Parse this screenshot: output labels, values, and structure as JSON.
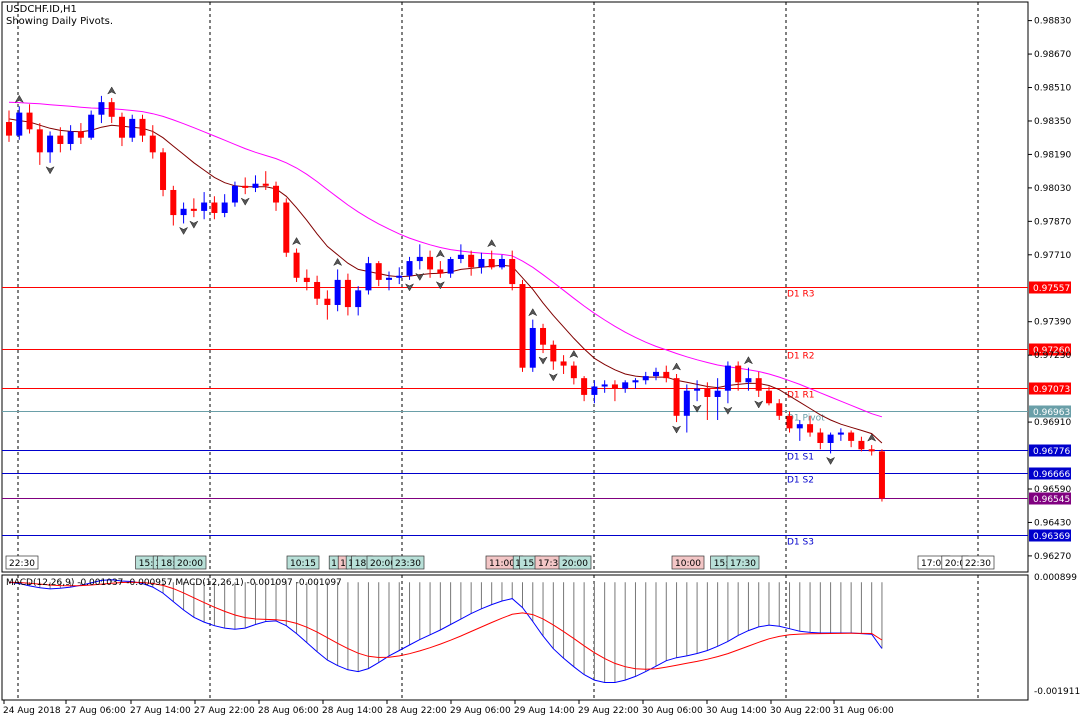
{
  "header": {
    "symbol": "USDCHF.ID,H1",
    "note": "Showing Daily Pivots."
  },
  "macd_label": "MACD(12,26,9) -0.001037 -0.000957 MACD(12,26,1) -0.001097 -0.001097",
  "colors": {
    "bull": "#0000ff",
    "bear": "#ff0000",
    "ma_fast": "#800000",
    "ma_slow": "#ff00ff",
    "resistance": "#ff0000",
    "pivot": "#6a9fa8",
    "support": "#0000cc",
    "current": "#800080"
  },
  "chart_data": {
    "type": "candlestick",
    "ylim": [
      0.96193,
      0.98919
    ],
    "y_ticks": [
      "0.98830",
      "0.98670",
      "0.98510",
      "0.98350",
      "0.98190",
      "0.98030",
      "0.97870",
      "0.97710",
      "0.97390",
      "0.97230",
      "0.96910",
      "0.96590",
      "0.96430",
      "0.96270"
    ],
    "x_ticks": [
      "24 Aug 2018",
      "27 Aug 06:00",
      "27 Aug 14:00",
      "27 Aug 22:00",
      "28 Aug 06:00",
      "28 Aug 14:00",
      "28 Aug 22:00",
      "29 Aug 06:00",
      "29 Aug 14:00",
      "29 Aug 22:00",
      "30 Aug 06:00",
      "30 Aug 14:00",
      "30 Aug 22:00",
      "31 Aug 06:00"
    ],
    "pivot_levels": [
      {
        "label": "D1 R3",
        "value": 0.97557,
        "tag": "0.97557",
        "kind": "resistance"
      },
      {
        "label": "D1 R2",
        "value": 0.9726,
        "tag": "0.97260",
        "kind": "resistance"
      },
      {
        "label": "D1 R1",
        "value": 0.97073,
        "tag": "0.97073",
        "kind": "resistance"
      },
      {
        "label": "D1 Pivot",
        "value": 0.96963,
        "tag": "0.96963",
        "kind": "pivot"
      },
      {
        "label": "D1 S1",
        "value": 0.96776,
        "tag": "0.96776",
        "kind": "support"
      },
      {
        "label": "D1 S2",
        "value": 0.96666,
        "tag": "0.96666",
        "kind": "support"
      },
      {
        "label": "",
        "value": 0.96545,
        "tag": "0.96545",
        "kind": "current"
      },
      {
        "label": "D1 S3",
        "value": 0.96369,
        "tag": "0.96369",
        "kind": "support"
      }
    ],
    "candles": [
      [
        0.98345,
        0.984,
        0.9825,
        0.9828
      ],
      [
        0.9828,
        0.9842,
        0.9826,
        0.9839
      ],
      [
        0.9839,
        0.9843,
        0.9829,
        0.9831
      ],
      [
        0.9831,
        0.9834,
        0.9814,
        0.982
      ],
      [
        0.982,
        0.983,
        0.9815,
        0.9828
      ],
      [
        0.9828,
        0.9832,
        0.982,
        0.9824
      ],
      [
        0.9824,
        0.9833,
        0.9821,
        0.983
      ],
      [
        0.983,
        0.9834,
        0.9824,
        0.9827
      ],
      [
        0.9827,
        0.984,
        0.9826,
        0.9838
      ],
      [
        0.9838,
        0.9847,
        0.9834,
        0.9844
      ],
      [
        0.9844,
        0.9846,
        0.9834,
        0.9837
      ],
      [
        0.9837,
        0.9839,
        0.9823,
        0.9827
      ],
      [
        0.9827,
        0.9838,
        0.9825,
        0.9836
      ],
      [
        0.9836,
        0.9838,
        0.9825,
        0.9828
      ],
      [
        0.9828,
        0.9833,
        0.9817,
        0.982
      ],
      [
        0.982,
        0.9822,
        0.9799,
        0.9802
      ],
      [
        0.9802,
        0.9804,
        0.9785,
        0.979
      ],
      [
        0.979,
        0.9796,
        0.9786,
        0.9793
      ],
      [
        0.9793,
        0.9798,
        0.9789,
        0.9792
      ],
      [
        0.9792,
        0.9801,
        0.9788,
        0.9796
      ],
      [
        0.9796,
        0.9799,
        0.9788,
        0.9791
      ],
      [
        0.9791,
        0.98,
        0.9789,
        0.9796
      ],
      [
        0.9796,
        0.9806,
        0.9794,
        0.9804
      ],
      [
        0.9804,
        0.9808,
        0.98,
        0.9803
      ],
      [
        0.9803,
        0.9809,
        0.9801,
        0.9805
      ],
      [
        0.9805,
        0.9811,
        0.9802,
        0.9804
      ],
      [
        0.9804,
        0.9806,
        0.9792,
        0.9796
      ],
      [
        0.9796,
        0.9798,
        0.977,
        0.9772
      ],
      [
        0.9772,
        0.9774,
        0.9758,
        0.976
      ],
      [
        0.976,
        0.9764,
        0.9754,
        0.9758
      ],
      [
        0.9758,
        0.9761,
        0.9747,
        0.975
      ],
      [
        0.975,
        0.9754,
        0.974,
        0.9747
      ],
      [
        0.9747,
        0.9764,
        0.9744,
        0.9759
      ],
      [
        0.9759,
        0.9762,
        0.9742,
        0.9746
      ],
      [
        0.9746,
        0.9756,
        0.9742,
        0.9754
      ],
      [
        0.9754,
        0.977,
        0.9752,
        0.9767
      ],
      [
        0.9767,
        0.9768,
        0.9756,
        0.9759
      ],
      [
        0.9759,
        0.9763,
        0.9754,
        0.976
      ],
      [
        0.976,
        0.9765,
        0.9757,
        0.9761
      ],
      [
        0.9761,
        0.977,
        0.9759,
        0.9768
      ],
      [
        0.9768,
        0.9776,
        0.9764,
        0.977
      ],
      [
        0.977,
        0.9773,
        0.976,
        0.9764
      ],
      [
        0.9764,
        0.9768,
        0.976,
        0.9762
      ],
      [
        0.9762,
        0.977,
        0.976,
        0.9769
      ],
      [
        0.9769,
        0.9776,
        0.9767,
        0.9771
      ],
      [
        0.9771,
        0.9773,
        0.9761,
        0.9765
      ],
      [
        0.9765,
        0.9772,
        0.9762,
        0.9769
      ],
      [
        0.9769,
        0.9773,
        0.9764,
        0.9765
      ],
      [
        0.9765,
        0.9771,
        0.9764,
        0.9769
      ],
      [
        0.9769,
        0.9773,
        0.9754,
        0.9757
      ],
      [
        0.9757,
        0.9759,
        0.9715,
        0.9717
      ],
      [
        0.9717,
        0.974,
        0.9715,
        0.9736
      ],
      [
        0.9736,
        0.9738,
        0.9724,
        0.9728
      ],
      [
        0.9728,
        0.973,
        0.9716,
        0.972
      ],
      [
        0.972,
        0.9723,
        0.9714,
        0.9718
      ],
      [
        0.9718,
        0.972,
        0.9709,
        0.9712
      ],
      [
        0.9712,
        0.9713,
        0.9701,
        0.9704
      ],
      [
        0.9704,
        0.9711,
        0.97,
        0.9708
      ],
      [
        0.9708,
        0.9711,
        0.9705,
        0.9709
      ],
      [
        0.9709,
        0.9711,
        0.9701,
        0.9707
      ],
      [
        0.9707,
        0.9711,
        0.9705,
        0.971
      ],
      [
        0.971,
        0.9712,
        0.9707,
        0.9711
      ],
      [
        0.9711,
        0.9715,
        0.9709,
        0.9713
      ],
      [
        0.9713,
        0.9717,
        0.9711,
        0.9715
      ],
      [
        0.9715,
        0.9718,
        0.971,
        0.9712
      ],
      [
        0.9712,
        0.9714,
        0.9691,
        0.9694
      ],
      [
        0.9694,
        0.9709,
        0.9686,
        0.9706
      ],
      [
        0.9706,
        0.9711,
        0.9701,
        0.9707
      ],
      [
        0.9707,
        0.971,
        0.9692,
        0.9703
      ],
      [
        0.9703,
        0.9712,
        0.9692,
        0.9706
      ],
      [
        0.9706,
        0.972,
        0.97,
        0.9718
      ],
      [
        0.9718,
        0.972,
        0.9706,
        0.971
      ],
      [
        0.971,
        0.9717,
        0.9706,
        0.9712
      ],
      [
        0.9712,
        0.9715,
        0.9703,
        0.9706
      ],
      [
        0.9706,
        0.9708,
        0.9699,
        0.97
      ],
      [
        0.97,
        0.9702,
        0.9692,
        0.9694
      ],
      [
        0.9694,
        0.9696,
        0.9686,
        0.9688
      ],
      [
        0.9688,
        0.9692,
        0.9682,
        0.969
      ],
      [
        0.969,
        0.9694,
        0.9684,
        0.9686
      ],
      [
        0.9686,
        0.9688,
        0.9678,
        0.9681
      ],
      [
        0.9681,
        0.9686,
        0.9676,
        0.9685
      ],
      [
        0.9685,
        0.9688,
        0.9682,
        0.9686
      ],
      [
        0.9686,
        0.9687,
        0.9679,
        0.9682
      ],
      [
        0.9682,
        0.9684,
        0.9677,
        0.9678
      ],
      [
        0.9678,
        0.968,
        0.9675,
        0.9677
      ],
      [
        0.9677,
        0.9678,
        0.9653,
        0.96545
      ]
    ],
    "ma_fast": [
      0.9836,
      0.98352,
      0.98345,
      0.9833,
      0.98315,
      0.98305,
      0.983,
      0.98298,
      0.98305,
      0.9832,
      0.9833,
      0.98325,
      0.9832,
      0.98315,
      0.983,
      0.9827,
      0.9823,
      0.9819,
      0.9815,
      0.98115,
      0.9808,
      0.98055,
      0.9804,
      0.98035,
      0.98035,
      0.98035,
      0.98025,
      0.9799,
      0.97935,
      0.97875,
      0.9781,
      0.9775,
      0.9771,
      0.9767,
      0.9764,
      0.9763,
      0.9762,
      0.9761,
      0.97605,
      0.97608,
      0.97615,
      0.9762,
      0.97622,
      0.97628,
      0.9764,
      0.97645,
      0.9765,
      0.97655,
      0.9766,
      0.97655,
      0.976,
      0.97545,
      0.9748,
      0.9742,
      0.97365,
      0.9731,
      0.9726,
      0.97215,
      0.97185,
      0.9716,
      0.9714,
      0.9713,
      0.97125,
      0.97125,
      0.97125,
      0.9711,
      0.971,
      0.9709,
      0.9708,
      0.97075,
      0.97085,
      0.9709,
      0.97095,
      0.97095,
      0.97085,
      0.97065,
      0.97035,
      0.97005,
      0.96975,
      0.96945,
      0.9692,
      0.969,
      0.96885,
      0.9687,
      0.96855,
      0.9681
    ],
    "ma_slow": [
      0.9844,
      0.98438,
      0.98435,
      0.98432,
      0.98428,
      0.98424,
      0.9842,
      0.98416,
      0.98412,
      0.9841,
      0.98408,
      0.98405,
      0.984,
      0.98395,
      0.98385,
      0.98372,
      0.98355,
      0.98337,
      0.98318,
      0.98298,
      0.98278,
      0.98258,
      0.98238,
      0.98218,
      0.982,
      0.98185,
      0.9817,
      0.9815,
      0.98125,
      0.98095,
      0.9806,
      0.98022,
      0.97985,
      0.97948,
      0.97915,
      0.97885,
      0.97858,
      0.97833,
      0.9781,
      0.9779,
      0.97773,
      0.97758,
      0.97745,
      0.97735,
      0.97728,
      0.97722,
      0.97718,
      0.97715,
      0.97712,
      0.97705,
      0.9768,
      0.9765,
      0.97615,
      0.97578,
      0.9754,
      0.97502,
      0.97465,
      0.9743,
      0.97398,
      0.97368,
      0.9734,
      0.97315,
      0.97292,
      0.97272,
      0.97255,
      0.97238,
      0.97222,
      0.97208,
      0.97195,
      0.97183,
      0.97175,
      0.97168,
      0.9716,
      0.97152,
      0.9714,
      0.97125,
      0.97108,
      0.9709,
      0.9707,
      0.9705,
      0.9703,
      0.9701,
      0.9699,
      0.9697,
      0.9695,
      0.96935
    ],
    "fractals_up": [
      1,
      10,
      28,
      32,
      42,
      47,
      51,
      55,
      65,
      72,
      84
    ],
    "fractals_down": [
      4,
      17,
      18,
      23,
      39,
      40,
      42,
      52,
      53,
      65,
      67,
      70,
      73,
      80
    ],
    "time_tags": [
      {
        "text": "22:30",
        "x": 22,
        "cls": "dark"
      },
      {
        "text": "15:",
        "x": 146,
        "cls": "teal"
      },
      {
        "text": "1",
        "x": 158,
        "cls": "teal"
      },
      {
        "text": "18:",
        "x": 168,
        "cls": "teal"
      },
      {
        "text": "20:00",
        "x": 190,
        "cls": "teal"
      },
      {
        "text": "10:15",
        "x": 303,
        "cls": "teal"
      },
      {
        "text": "1",
        "x": 334,
        "cls": "teal"
      },
      {
        "text": "1",
        "x": 343,
        "cls": "pink"
      },
      {
        "text": "1",
        "x": 351,
        "cls": "teal"
      },
      {
        "text": "18:",
        "x": 362,
        "cls": "teal"
      },
      {
        "text": "20:00",
        "x": 383,
        "cls": "teal"
      },
      {
        "text": "23:30",
        "x": 408,
        "cls": "teal"
      },
      {
        "text": "11:00",
        "x": 502,
        "cls": "pink"
      },
      {
        "text": "1",
        "x": 518,
        "cls": "teal"
      },
      {
        "text": "15:",
        "x": 530,
        "cls": "teal"
      },
      {
        "text": "17:30",
        "x": 551,
        "cls": "pink"
      },
      {
        "text": "20:00",
        "x": 575,
        "cls": "teal"
      },
      {
        "text": "10:00",
        "x": 688,
        "cls": "pink"
      },
      {
        "text": "15:",
        "x": 721,
        "cls": "teal"
      },
      {
        "text": "17:30",
        "x": 743,
        "cls": "teal"
      },
      {
        "text": "17:00",
        "x": 934,
        "cls": "white"
      },
      {
        "text": "20:0",
        "x": 955,
        "cls": "white"
      },
      {
        "text": "22:30",
        "x": 978,
        "cls": "white"
      }
    ],
    "macd": {
      "ylim": [
        -0.00195,
        0.00012
      ],
      "top_tick": "0.000899",
      "bottom_tick": "-0.001911",
      "macd_hist": [
        0.0,
        -2e-05,
        -6e-05,
        -9e-05,
        -0.00011,
        -0.0001,
        -8e-05,
        -5e-05,
        -1e-05,
        3e-05,
        4e-05,
        2e-05,
        1e-05,
        -2e-05,
        -8e-05,
        -0.00018,
        -0.00032,
        -0.00046,
        -0.00058,
        -0.00066,
        -0.00072,
        -0.00076,
        -0.00078,
        -0.00076,
        -0.0007,
        -0.00065,
        -0.00064,
        -0.00072,
        -0.00085,
        -0.001,
        -0.00115,
        -0.00129,
        -0.00138,
        -0.00145,
        -0.00148,
        -0.00143,
        -0.00133,
        -0.00122,
        -0.00113,
        -0.00104,
        -0.00095,
        -0.00087,
        -0.00079,
        -0.0007,
        -0.00061,
        -0.00052,
        -0.00044,
        -0.00037,
        -0.00031,
        -0.00027,
        -0.00042,
        -0.00065,
        -0.00089,
        -0.0011,
        -0.00126,
        -0.0014,
        -0.00153,
        -0.00162,
        -0.00166,
        -0.00166,
        -0.00162,
        -0.00156,
        -0.00148,
        -0.00139,
        -0.0013,
        -0.00125,
        -0.00122,
        -0.00118,
        -0.00113,
        -0.00106,
        -0.00098,
        -0.00088,
        -0.0008,
        -0.00074,
        -0.00071,
        -0.00073,
        -0.00077,
        -0.00081,
        -0.00083,
        -0.00084,
        -0.00084,
        -0.00084,
        -0.00084,
        -0.00085,
        -0.00086,
        -0.001097
      ],
      "signal": [
        0.0,
        -5e-06,
        -1.5e-05,
        -3e-05,
        -4.5e-05,
        -5.5e-05,
        -5.8e-05,
        -5.5e-05,
        -4.5e-05,
        -3e-05,
        -1.5e-05,
        -5e-06,
        0.0,
        -4e-06,
        -2e-05,
        -5.2e-05,
        -0.000106,
        -0.000176,
        -0.000257,
        -0.000337,
        -0.000414,
        -0.000483,
        -0.000542,
        -0.000585,
        -0.000608,
        -0.000616,
        -0.00062,
        -0.00064,
        -0.000682,
        -0.000745,
        -0.000826,
        -0.000919,
        -0.001011,
        -0.001099,
        -0.001175,
        -0.001226,
        -0.001247,
        -0.001242,
        -0.001219,
        -0.001183,
        -0.001137,
        -0.001084,
        -0.001025,
        -0.00096,
        -0.00089,
        -0.000816,
        -0.000741,
        -0.000666,
        -0.000595,
        -0.00053,
        -0.000508,
        -0.000536,
        -0.000607,
        -0.000706,
        -0.000817,
        -0.000933,
        -0.001053,
        -0.001167,
        -0.001265,
        -0.001344,
        -0.001399,
        -0.001431,
        -0.001441,
        -0.001431,
        -0.001405,
        -0.001374,
        -0.001343,
        -0.00131,
        -0.001274,
        -0.001231,
        -0.001181,
        -0.001121,
        -0.001057,
        -0.000994,
        -0.000937,
        -0.000896,
        -0.00087,
        -0.000858,
        -0.000852,
        -0.00085,
        -0.000848,
        -0.000847,
        -0.000846,
        -0.000847,
        -0.000849,
        -0.000957
      ]
    }
  }
}
